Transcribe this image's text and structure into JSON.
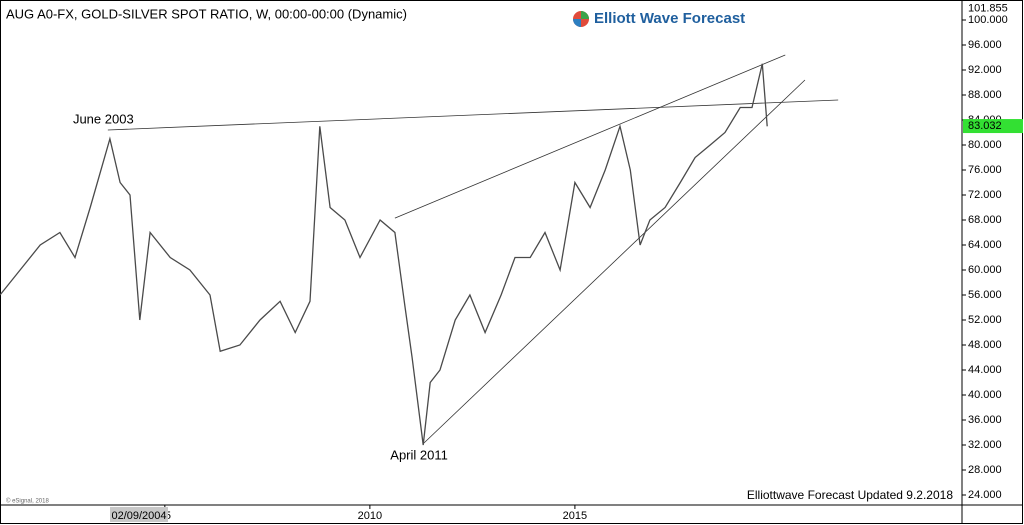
{
  "chart_data": {
    "type": "line",
    "title": "AUG A0-FX, GOLD-SILVER SPOT RATIO, W, 00:00-00:00 (Dynamic)",
    "brand": "Elliott Wave Forecast",
    "footer": "Elliottwave Forecast Updated 9.2.2018",
    "copyright": "© eSignal, 2018",
    "cursor_date": "02/09/2004",
    "high_price": 101.855,
    "last_price": 83.032,
    "color": "#4a4a4a",
    "last_price_color": "#33e033",
    "xlim": [
      2000.98,
      2024.44
    ],
    "xticks": [
      {
        "value": 2005,
        "label": "05"
      },
      2010,
      2015
    ],
    "ylim": [
      22.4,
      103.2
    ],
    "yticks": [
      {
        "value": 24,
        "label": "24.000"
      },
      {
        "value": 28,
        "label": "28.000"
      },
      {
        "value": 32,
        "label": "32.000"
      },
      {
        "value": 36,
        "label": "36.000"
      },
      {
        "value": 40,
        "label": "40.000"
      },
      {
        "value": 44,
        "label": "44.000"
      },
      {
        "value": 48,
        "label": "48.000"
      },
      {
        "value": 52,
        "label": "52.000"
      },
      {
        "value": 56,
        "label": "56.000"
      },
      {
        "value": 60,
        "label": "60.000"
      },
      {
        "value": 64,
        "label": "64.000"
      },
      {
        "value": 68,
        "label": "68.000"
      },
      {
        "value": 72,
        "label": "72.000"
      },
      {
        "value": 76,
        "label": "76.000"
      },
      {
        "value": 80,
        "label": "80.000"
      },
      {
        "value": 84,
        "label": "84.000"
      },
      {
        "value": 88,
        "label": "88.000"
      },
      {
        "value": 92,
        "label": "92.000"
      },
      {
        "value": 96,
        "label": "96.000"
      },
      {
        "value": 100,
        "label": "100.000"
      }
    ],
    "x": [
      2000.98,
      2001.47,
      2001.96,
      2002.44,
      2002.81,
      2003.18,
      2003.66,
      2003.91,
      2004.15,
      2004.39,
      2004.64,
      2005.13,
      2005.61,
      2006.1,
      2006.35,
      2006.83,
      2007.32,
      2007.81,
      2008.18,
      2008.54,
      2008.78,
      2009.03,
      2009.39,
      2009.76,
      2010.25,
      2010.61,
      2010.86,
      2011.03,
      2011.3,
      2011.47,
      2011.71,
      2012.08,
      2012.44,
      2012.81,
      2013.2,
      2013.54,
      2013.91,
      2014.27,
      2014.64,
      2015.0,
      2015.37,
      2015.74,
      2016.1,
      2016.35,
      2016.59,
      2016.83,
      2017.2,
      2017.57,
      2017.93,
      2018.3,
      2018.66,
      2019.03,
      2019.32,
      2019.57,
      2019.69
    ],
    "values": [
      56,
      60,
      64,
      66,
      62,
      70,
      81,
      74,
      72,
      52,
      66,
      62,
      60,
      56,
      47,
      48,
      52,
      55,
      50,
      55,
      83,
      70,
      68,
      62,
      68,
      66,
      54,
      46,
      32,
      42,
      44,
      52,
      56,
      50,
      56,
      62,
      62,
      66,
      60,
      74,
      70,
      76,
      83,
      76,
      64,
      68,
      70,
      74,
      78,
      80,
      82,
      86,
      86,
      93,
      83
    ],
    "trendlines": [
      {
        "x": [
          2003.61,
          2021.42
        ],
        "y": [
          82.4,
          87.2
        ]
      },
      {
        "x": [
          2010.61,
          2020.13
        ],
        "y": [
          68.3,
          94.4
        ]
      },
      {
        "x": [
          2011.3,
          2020.61
        ],
        "y": [
          32.2,
          90.4
        ]
      }
    ],
    "annotations": [
      {
        "text": "June 2003",
        "x": 2003.5,
        "y": 84
      },
      {
        "text": "April 2011",
        "x": 2011.2,
        "y": 30.2
      }
    ]
  }
}
